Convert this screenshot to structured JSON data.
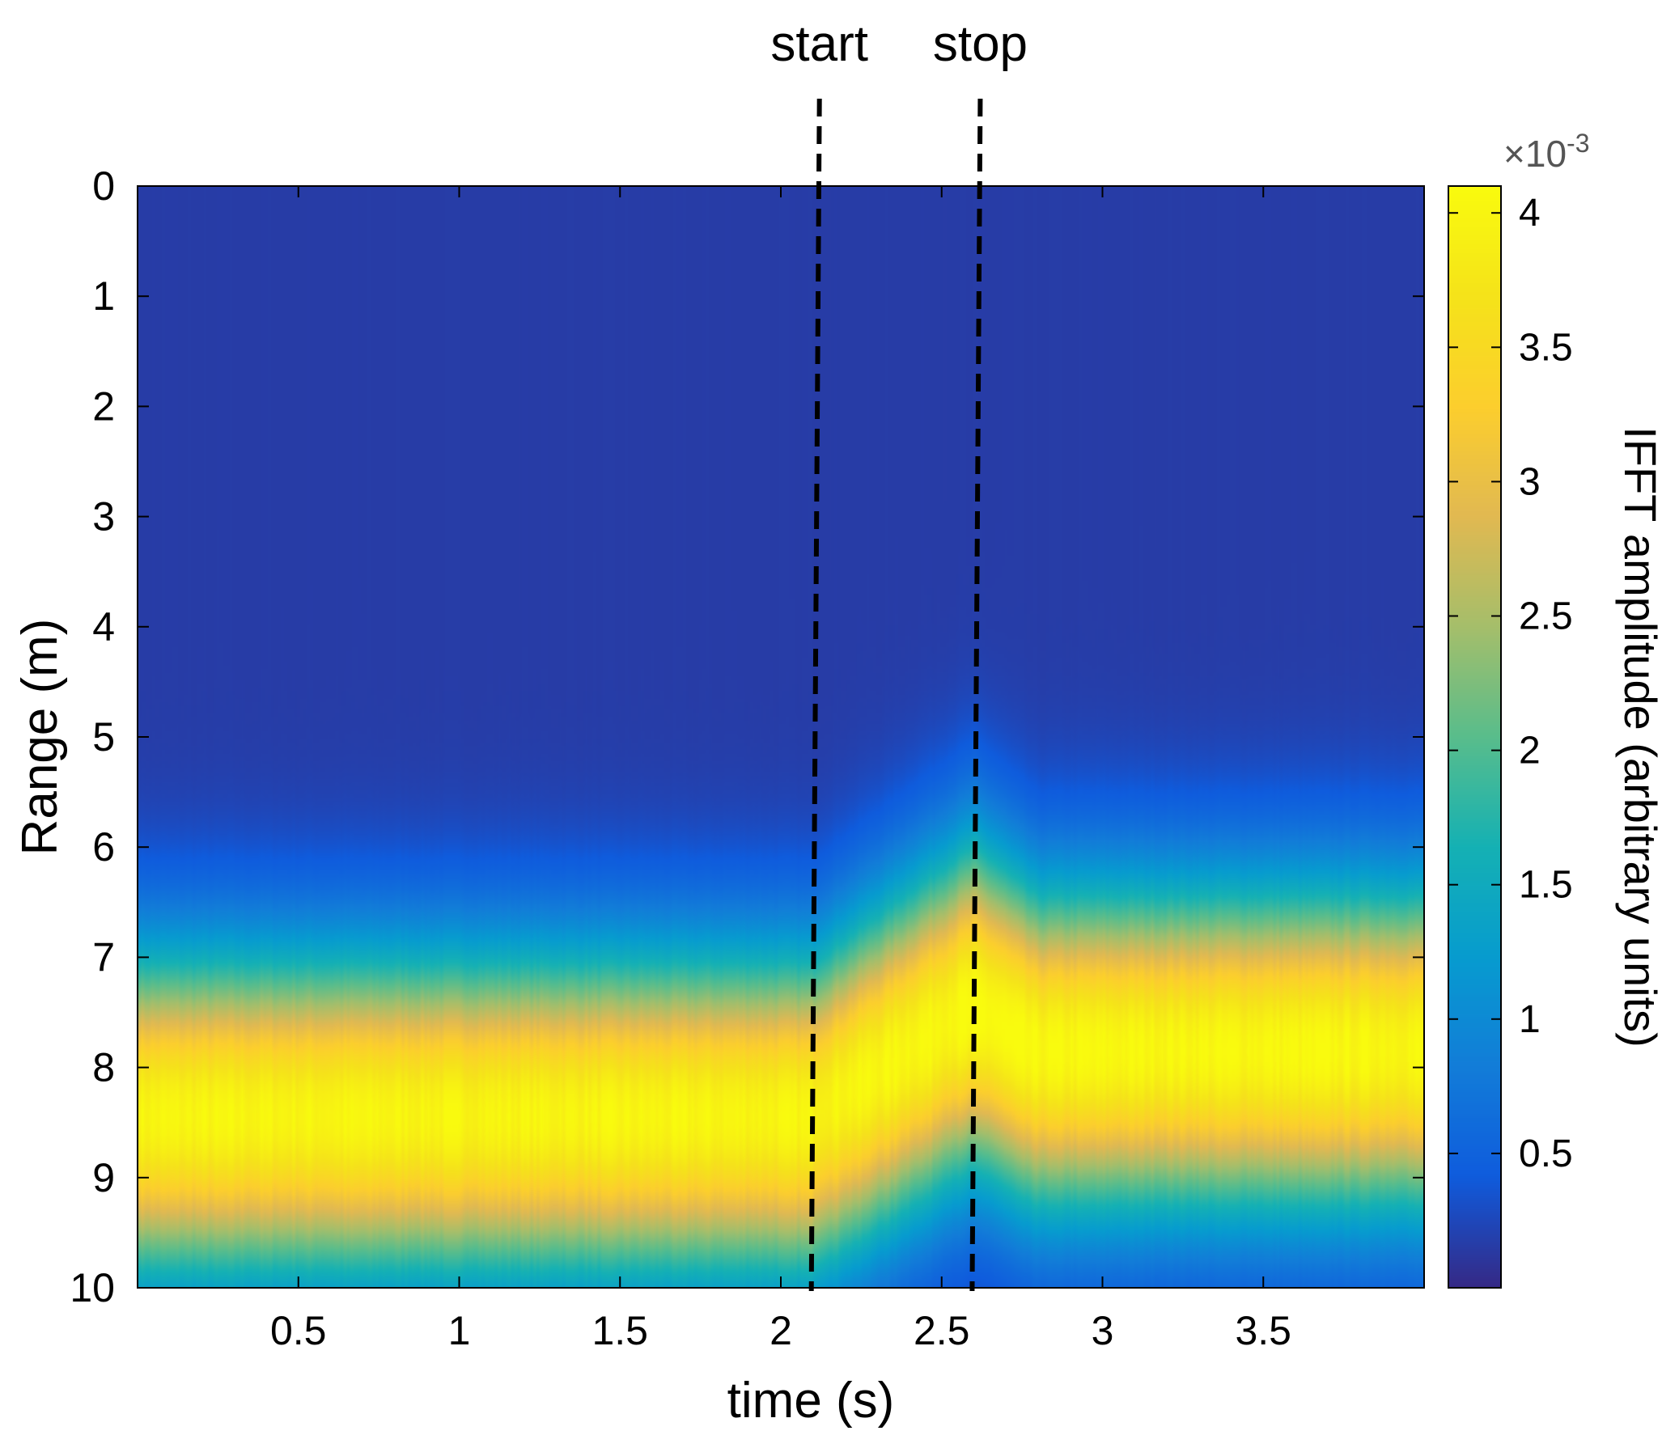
{
  "chart_data": {
    "type": "heatmap",
    "title": "",
    "xlabel": "time (s)",
    "ylabel": "Range (m)",
    "xlim": [
      0,
      4
    ],
    "ylim": [
      0,
      10
    ],
    "y_reversed": true,
    "xticks": [
      0.5,
      1,
      1.5,
      2,
      2.5,
      3,
      3.5
    ],
    "xtick_labels": [
      "0.5",
      "1",
      "1.5",
      "2",
      "2.5",
      "3",
      "3.5"
    ],
    "yticks": [
      0,
      1,
      2,
      3,
      4,
      5,
      6,
      7,
      8,
      9,
      10
    ],
    "ytick_labels": [
      "0",
      "1",
      "2",
      "3",
      "4",
      "5",
      "6",
      "7",
      "8",
      "9",
      "10"
    ],
    "colorbar": {
      "label": "IFFT amplitude (arbitrary units)",
      "exponent_text": "×10",
      "exponent_sup": "-3",
      "range": [
        0.0,
        4.1
      ],
      "ticks": [
        0.5,
        1,
        1.5,
        2,
        2.5,
        3,
        3.5,
        4
      ],
      "tick_labels": [
        "0.5",
        "1",
        "1.5",
        "2",
        "2.5",
        "3",
        "3.5",
        "4"
      ],
      "colormap": "parula"
    },
    "peak_track": {
      "description_points_time_s": [
        0,
        2.1,
        2.6,
        2.8,
        4.0
      ],
      "peak_range_m": [
        8.45,
        8.45,
        7.45,
        7.85,
        7.85
      ],
      "band_halfwidth_m": [
        1.5,
        1.5,
        1.55,
        1.5,
        1.5
      ],
      "peak_amplitude": [
        4.0,
        4.0,
        4.1,
        4.05,
        4.05
      ]
    },
    "annotations": [
      {
        "text": "start",
        "x": 2.12,
        "style": "dashed"
      },
      {
        "text": "stop",
        "x": 2.62,
        "style": "dashed"
      }
    ],
    "background_amplitude": 0.15
  }
}
